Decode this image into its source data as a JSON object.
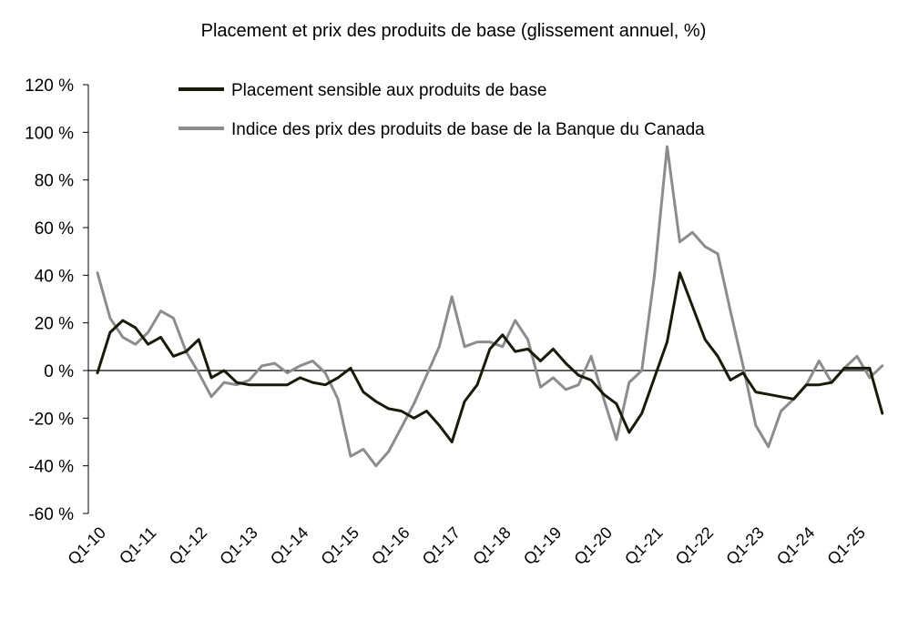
{
  "chart_data": {
    "type": "line",
    "title": "Placement et prix des produits de base (glissement annuel, %)",
    "xlabel": "",
    "ylabel": "",
    "ylim": [
      -60,
      120
    ],
    "y_ticks": [
      120,
      100,
      80,
      60,
      40,
      20,
      0,
      -20,
      -40,
      -60
    ],
    "y_tick_labels": [
      "120 %",
      "100 %",
      "80 %",
      "60 %",
      "40 %",
      "20 %",
      "0 %",
      "-20 %",
      "-40 %",
      "-60 %"
    ],
    "x_tick_labels": [
      "Q1-10",
      "Q1-11",
      "Q1-12",
      "Q1-13",
      "Q1-14",
      "Q1-15",
      "Q1-16",
      "Q1-17",
      "Q1-18",
      "Q1-19",
      "Q1-20",
      "Q1-21",
      "Q1-22",
      "Q1-23",
      "Q1-24",
      "Q1-25"
    ],
    "x_start": "Q1-10",
    "x_end": "Q3-25",
    "grid": false,
    "legend_position": "top",
    "series": [
      {
        "name": "Placement sensible aux produits de base",
        "color": "#1a1a0a",
        "values": [
          -1,
          16,
          21,
          18,
          11,
          14,
          6,
          8,
          13,
          -3,
          0,
          -5,
          -6,
          -6,
          -6,
          -6,
          -3,
          -5,
          -6,
          -3,
          1,
          -9,
          -13,
          -16,
          -17,
          -20,
          -17,
          -23,
          -30,
          -13,
          -6,
          9,
          15,
          8,
          9,
          4,
          9,
          3,
          -2,
          -4,
          -10,
          -14,
          -26,
          -18,
          -3,
          12,
          41,
          27,
          13,
          6,
          -4,
          -1,
          -9,
          -10,
          -11,
          -12,
          -6,
          -6,
          -5,
          1,
          1,
          1,
          -18
        ]
      },
      {
        "name": "Indice des prix des produits de base de la Banque du Canada",
        "color": "#8c8c8c",
        "values": [
          41,
          22,
          14,
          11,
          16,
          25,
          22,
          8,
          -1,
          -11,
          -5,
          -6,
          -4,
          2,
          3,
          -1,
          2,
          4,
          -1,
          -12,
          -36,
          -33,
          -40,
          -34,
          -24,
          -14,
          -2,
          10,
          31,
          10,
          12,
          12,
          10,
          21,
          13,
          -7,
          -3,
          -8,
          -6,
          6,
          -12,
          -29,
          -5,
          0,
          40,
          94,
          54,
          58,
          52,
          49,
          25,
          2,
          -23,
          -32,
          -17,
          -12,
          -6,
          4,
          -5,
          1,
          6,
          -3,
          2
        ]
      }
    ]
  }
}
